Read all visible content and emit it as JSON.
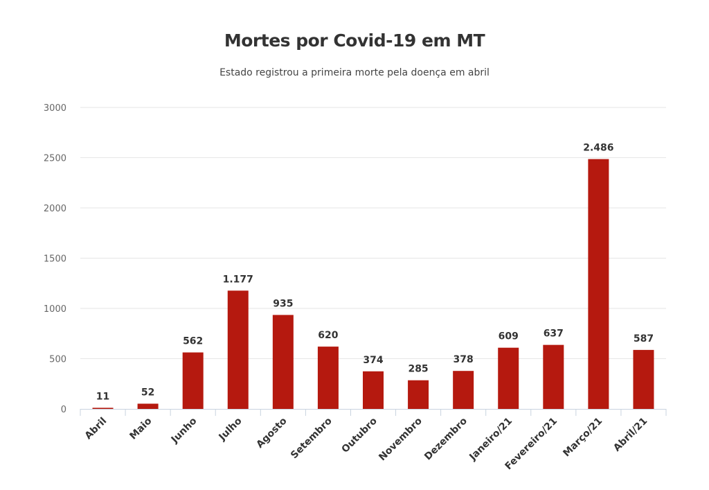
{
  "chart_data": {
    "type": "bar",
    "title": "Mortes por Covid-19 em MT",
    "subtitle": "Estado registrou a primeira morte pela doença em abril",
    "xlabel": "",
    "ylabel": "",
    "ylim": [
      0,
      3000
    ],
    "yticks": [
      0,
      500,
      1000,
      1500,
      2000,
      2500,
      3000
    ],
    "grid": true,
    "bar_color": "#b5190f",
    "categories": [
      "Abril",
      "Maio",
      "Junho",
      "Julho",
      "Agosto",
      "Setembro",
      "Outubro",
      "Novembro",
      "Dezembro",
      "Janeiro/21",
      "Fevereiro/21",
      "Março/21",
      "Abril/21"
    ],
    "values": [
      11,
      52,
      562,
      1177,
      935,
      620,
      374,
      285,
      378,
      609,
      637,
      2486,
      587
    ],
    "data_labels": [
      "11",
      "52",
      "562",
      "1.177",
      "935",
      "620",
      "374",
      "285",
      "378",
      "609",
      "637",
      "2.486",
      "587"
    ]
  }
}
